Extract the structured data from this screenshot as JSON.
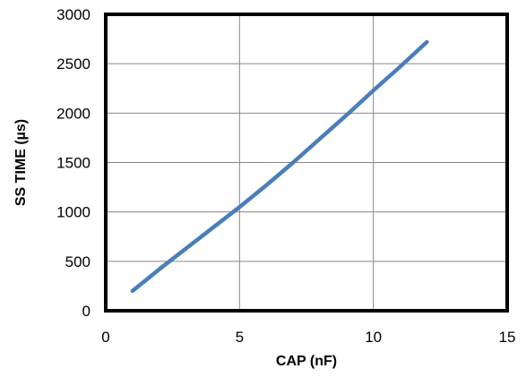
{
  "chart_data": {
    "type": "line",
    "xlabel": "CAP  (nF)",
    "ylabel": "SS TIME (µs)",
    "xlim": [
      0,
      15
    ],
    "ylim": [
      0,
      3000
    ],
    "x_ticks": [
      0,
      5,
      10,
      15
    ],
    "y_ticks": [
      0,
      500,
      1000,
      1500,
      2000,
      2500,
      3000
    ],
    "grid": true,
    "legend": "none",
    "series": [
      {
        "color": "#4a7ebb",
        "x": [
          1,
          2,
          3,
          4,
          5,
          6,
          7,
          8,
          9,
          10,
          11,
          12
        ],
        "y": [
          200,
          420,
          630,
          840,
          1050,
          1270,
          1500,
          1740,
          1980,
          2230,
          2470,
          2720
        ]
      }
    ]
  }
}
